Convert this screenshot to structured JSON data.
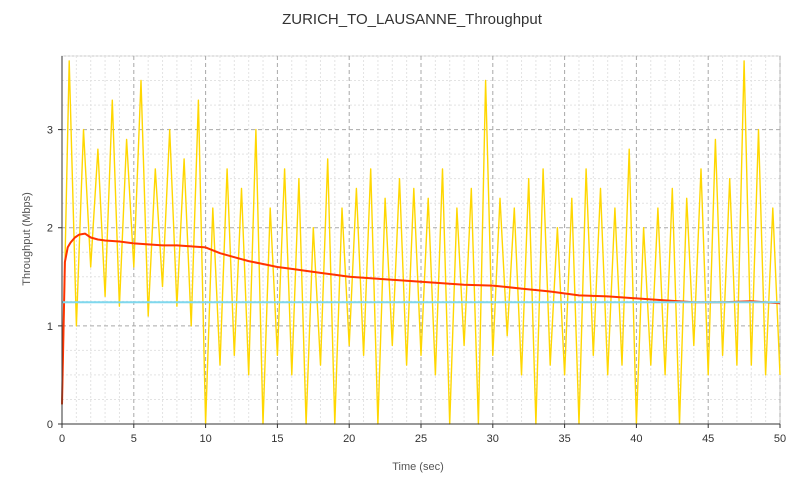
{
  "chart_data": {
    "type": "line",
    "title": "ZURICH_TO_LAUSANNE_Throughput",
    "xlabel": "Time (sec)",
    "ylabel": "Throughput (Mbps)",
    "xlim": [
      0,
      50
    ],
    "ylim": [
      0,
      3.75
    ],
    "x_ticks": [
      0,
      5,
      10,
      15,
      20,
      25,
      30,
      35,
      40,
      45,
      50
    ],
    "y_ticks": [
      0,
      1,
      2,
      3
    ],
    "grid": true,
    "legend": "none",
    "series": [
      {
        "color": "#FFD700",
        "style": "instantaneous",
        "x": [
          0.0,
          0.5,
          1.0,
          1.5,
          2.0,
          2.5,
          3.0,
          3.5,
          4.0,
          4.5,
          5.0,
          5.5,
          6.0,
          6.5,
          7.0,
          7.5,
          8.0,
          8.5,
          9.0,
          9.5,
          10.0,
          10.5,
          11.0,
          11.5,
          12.0,
          12.5,
          13.0,
          13.5,
          14.0,
          14.5,
          15.0,
          15.5,
          16.0,
          16.5,
          17.0,
          17.5,
          18.0,
          18.5,
          19.0,
          19.5,
          20.0,
          20.5,
          21.0,
          21.5,
          22.0,
          22.5,
          23.0,
          23.5,
          24.0,
          24.5,
          25.0,
          25.5,
          26.0,
          26.5,
          27.0,
          27.5,
          28.0,
          28.5,
          29.0,
          29.5,
          30.0,
          30.5,
          31.0,
          31.5,
          32.0,
          32.5,
          33.0,
          33.5,
          34.0,
          34.5,
          35.0,
          35.5,
          36.0,
          36.5,
          37.0,
          37.5,
          38.0,
          38.5,
          39.0,
          39.5,
          40.0,
          40.5,
          41.0,
          41.5,
          42.0,
          42.5,
          43.0,
          43.5,
          44.0,
          44.5,
          45.0,
          45.5,
          46.0,
          46.5,
          47.0,
          47.5,
          48.0,
          48.5,
          49.0,
          49.5,
          50.0
        ],
        "y": [
          0.2,
          3.7,
          1.0,
          3.0,
          1.6,
          2.8,
          1.3,
          3.3,
          1.2,
          2.9,
          1.6,
          3.5,
          1.1,
          2.6,
          1.4,
          3.0,
          1.2,
          2.7,
          1.0,
          3.3,
          0.0,
          2.2,
          0.6,
          2.6,
          0.7,
          2.4,
          0.5,
          3.0,
          0.0,
          2.2,
          0.7,
          2.6,
          0.5,
          2.5,
          0.0,
          2.0,
          0.6,
          2.7,
          0.0,
          2.2,
          0.8,
          2.4,
          0.7,
          2.6,
          0.0,
          2.3,
          0.8,
          2.5,
          0.6,
          2.4,
          0.7,
          2.3,
          0.5,
          2.6,
          0.0,
          2.2,
          0.8,
          2.4,
          0.0,
          3.5,
          0.7,
          2.3,
          0.9,
          2.2,
          0.5,
          2.5,
          0.0,
          2.6,
          0.6,
          2.0,
          0.5,
          2.3,
          0.0,
          2.6,
          0.7,
          2.4,
          0.5,
          2.2,
          0.6,
          2.8,
          0.0,
          2.0,
          0.6,
          2.2,
          0.5,
          2.4,
          0.0,
          2.3,
          0.8,
          2.6,
          0.5,
          2.9,
          0.7,
          2.5,
          0.6,
          3.7,
          0.6,
          3.0,
          0.5,
          2.2,
          0.5
        ]
      },
      {
        "color": "#FF3300",
        "style": "cumulative average",
        "x": [
          0.0,
          0.1,
          0.2,
          0.4,
          0.6,
          0.9,
          1.2,
          1.6,
          2.0,
          2.5,
          3.0,
          4.0,
          5.0,
          6.0,
          7.0,
          8.0,
          9.0,
          10.0,
          11.0,
          12.0,
          13.0,
          14.0,
          15.0,
          16.0,
          17.0,
          18.0,
          19.0,
          20.0,
          22.0,
          24.0,
          26.0,
          28.0,
          30.0,
          32.0,
          34.0,
          36.0,
          38.0,
          40.0,
          42.0,
          44.0,
          46.0,
          48.0,
          50.0
        ],
        "y": [
          0.2,
          0.9,
          1.65,
          1.8,
          1.85,
          1.9,
          1.93,
          1.94,
          1.9,
          1.88,
          1.87,
          1.86,
          1.84,
          1.83,
          1.82,
          1.82,
          1.81,
          1.8,
          1.74,
          1.7,
          1.66,
          1.63,
          1.6,
          1.58,
          1.56,
          1.54,
          1.52,
          1.5,
          1.48,
          1.46,
          1.44,
          1.42,
          1.41,
          1.38,
          1.35,
          1.31,
          1.3,
          1.28,
          1.26,
          1.24,
          1.24,
          1.25,
          1.23
        ]
      },
      {
        "color": "#7FD8EE",
        "style": "overall mean",
        "x": [
          0,
          50
        ],
        "y": [
          1.24,
          1.24
        ]
      }
    ]
  }
}
